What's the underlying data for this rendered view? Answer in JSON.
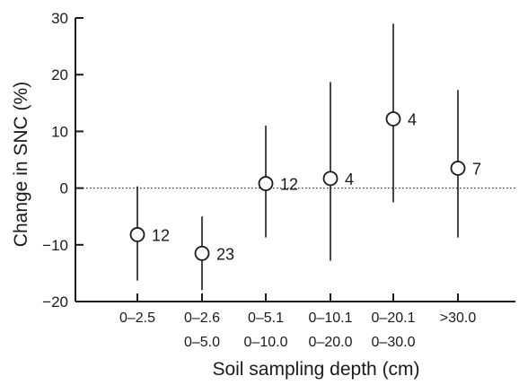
{
  "chart_data": {
    "type": "scatter",
    "title": "",
    "xlabel": "Soil sampling depth (cm)",
    "ylabel": "Change in SNC (%)",
    "ylim": [
      -20,
      30
    ],
    "yticks": [
      -20,
      -10,
      0,
      10,
      20,
      30
    ],
    "zero_line": "dotted",
    "grid": false,
    "categories": [
      {
        "line1": "0–2.5",
        "line2": ""
      },
      {
        "line1": "0–2.6",
        "line2": "0–5.0"
      },
      {
        "line1": "0–5.1",
        "line2": "0–10.0"
      },
      {
        "line1": "0–10.1",
        "line2": "0–20.0"
      },
      {
        "line1": "0–20.1",
        "line2": "0–30.0"
      },
      {
        "line1": ">30.0",
        "line2": ""
      }
    ],
    "points": [
      {
        "y": -8.2,
        "low": -16.3,
        "high": 0.3,
        "n": "12"
      },
      {
        "y": -11.5,
        "low": -18.0,
        "high": -5.0,
        "n": "23"
      },
      {
        "y": 0.8,
        "low": -8.7,
        "high": 11.0,
        "n": "12"
      },
      {
        "y": 1.7,
        "low": -12.8,
        "high": 18.7,
        "n": "4"
      },
      {
        "y": 12.2,
        "low": -2.5,
        "high": 29.0,
        "n": "4"
      },
      {
        "y": 3.5,
        "low": -8.7,
        "high": 17.3,
        "n": "7"
      }
    ]
  }
}
